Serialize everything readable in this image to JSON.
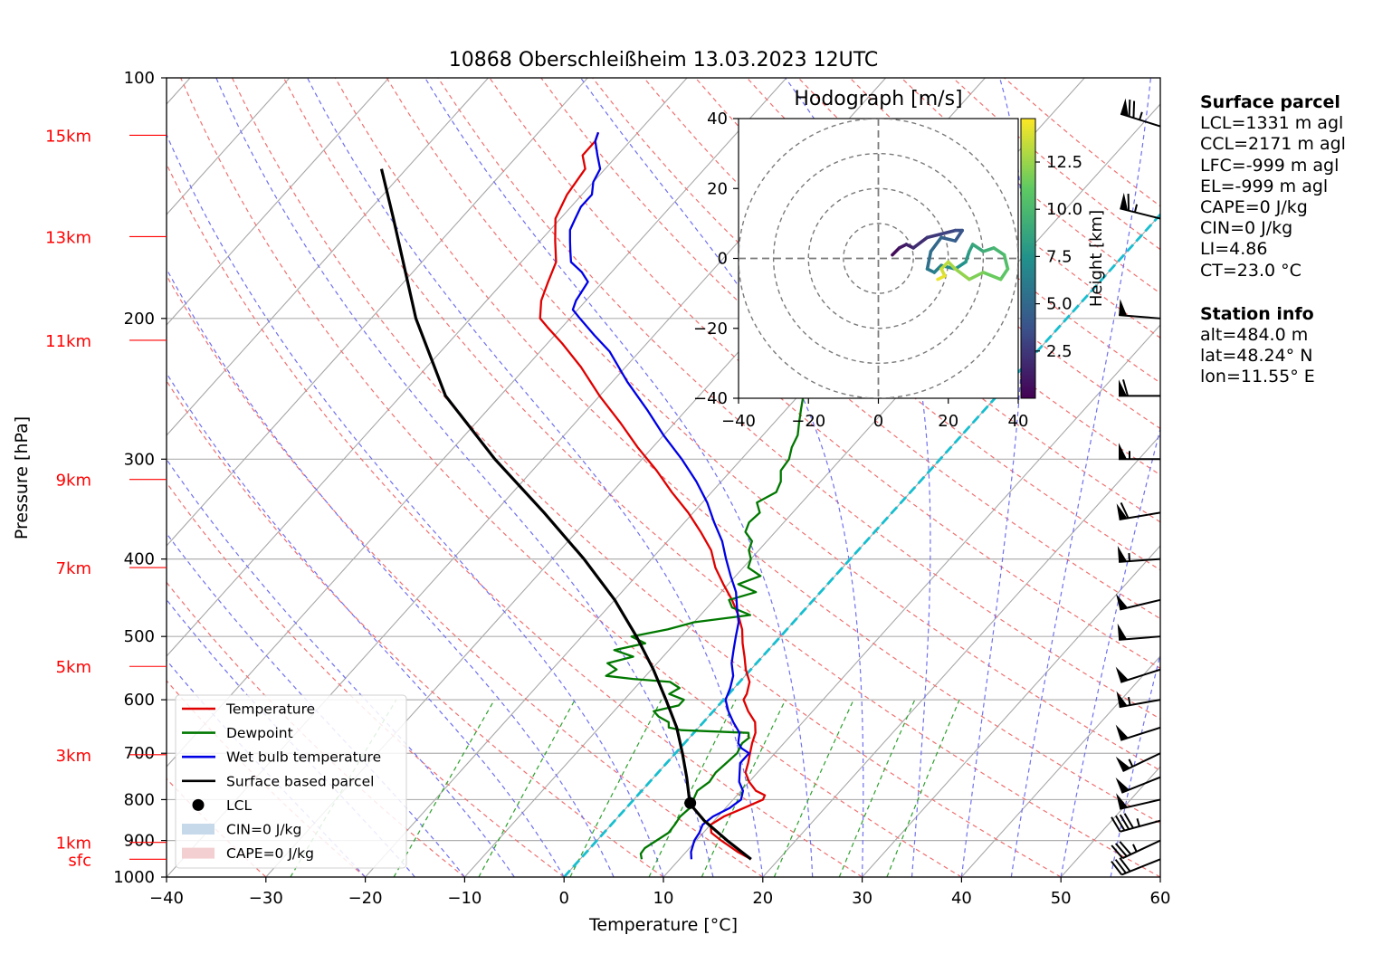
{
  "chart_data": {
    "type": "skew-t log-p sounding",
    "title": "10868 Oberschleißheim 13.03.2023 12UTC",
    "xlabel": "Temperature [°C]",
    "ylabel": "Pressure [hPa]",
    "xlim": [
      -40,
      60
    ],
    "ylim_hpa": [
      1000,
      100
    ],
    "y_scale": "log",
    "x_ticks": [
      "−40",
      "−30",
      "−20",
      "−10",
      "0",
      "10",
      "20",
      "30",
      "40",
      "50",
      "60"
    ],
    "y_ticks": [
      {
        "p": 100,
        "label": "100"
      },
      {
        "p": 200,
        "label": "200"
      },
      {
        "p": 300,
        "label": "300"
      },
      {
        "p": 400,
        "label": "400"
      },
      {
        "p": 500,
        "label": "500"
      },
      {
        "p": 600,
        "label": "600"
      },
      {
        "p": 700,
        "label": "700"
      },
      {
        "p": 800,
        "label": "800"
      },
      {
        "p": 900,
        "label": "900"
      },
      {
        "p": 1000,
        "label": "1000"
      }
    ],
    "height_labels": [
      {
        "label": "15km",
        "p": 118
      },
      {
        "label": "13km",
        "p": 158
      },
      {
        "label": "11km",
        "p": 213
      },
      {
        "label": "9km",
        "p": 318
      },
      {
        "label": "7km",
        "p": 410
      },
      {
        "label": "5km",
        "p": 545
      },
      {
        "label": "3km",
        "p": 703
      },
      {
        "label": "1km",
        "p": 905
      },
      {
        "label": "sfc",
        "p": 950
      }
    ],
    "legend_position": "lower-left",
    "legend": [
      {
        "label": "Temperature",
        "color": "#e00000",
        "kind": "line"
      },
      {
        "label": "Dewpoint",
        "color": "#007800",
        "kind": "line"
      },
      {
        "label": "Wet bulb temperature",
        "color": "#0000e6",
        "kind": "line"
      },
      {
        "label": "Surface based parcel",
        "color": "#000000",
        "kind": "line"
      },
      {
        "label": "LCL",
        "color": "#000000",
        "kind": "dot"
      },
      {
        "label": "CIN=0 J/kg",
        "color": "#c6d9ea",
        "kind": "patch"
      },
      {
        "label": "CAPE=0 J/kg",
        "color": "#f3cfd1",
        "kind": "patch"
      }
    ],
    "series": [
      {
        "name": "Temperature",
        "color": "#e00000",
        "points": [
          [
            950,
            17.2
          ],
          [
            930,
            15.2
          ],
          [
            900,
            12.5
          ],
          [
            880,
            10.8
          ],
          [
            860,
            10.0
          ],
          [
            840,
            10.6
          ],
          [
            820,
            11.8
          ],
          [
            800,
            13.0
          ],
          [
            790,
            12.8
          ],
          [
            780,
            11.5
          ],
          [
            760,
            10.0
          ],
          [
            740,
            8.8
          ],
          [
            720,
            8.2
          ],
          [
            700,
            7.5
          ],
          [
            680,
            6.8
          ],
          [
            660,
            6.2
          ],
          [
            640,
            5.2
          ],
          [
            620,
            3.5
          ],
          [
            600,
            2.0
          ],
          [
            590,
            1.8
          ],
          [
            570,
            1.0
          ],
          [
            550,
            -0.5
          ],
          [
            530,
            -1.8
          ],
          [
            510,
            -3.2
          ],
          [
            490,
            -4.5
          ],
          [
            470,
            -6.2
          ],
          [
            450,
            -8.2
          ],
          [
            430,
            -10.5
          ],
          [
            410,
            -12.8
          ],
          [
            390,
            -14.8
          ],
          [
            370,
            -17.5
          ],
          [
            350,
            -20.5
          ],
          [
            330,
            -24
          ],
          [
            310,
            -27.5
          ],
          [
            290,
            -31.5
          ],
          [
            270,
            -35.5
          ],
          [
            250,
            -40
          ],
          [
            230,
            -44.5
          ],
          [
            215,
            -48.5
          ],
          [
            205,
            -51.5
          ],
          [
            200,
            -53
          ],
          [
            190,
            -54.5
          ],
          [
            180,
            -55.5
          ],
          [
            170,
            -56.5
          ],
          [
            160,
            -58.5
          ],
          [
            150,
            -60.5
          ],
          [
            140,
            -61.5
          ],
          [
            130,
            -62
          ],
          [
            125,
            -63.5
          ],
          [
            120,
            -63.5
          ],
          [
            117,
            -64
          ]
        ]
      },
      {
        "name": "Dewpoint",
        "color": "#007800",
        "points": [
          [
            950,
            6.2
          ],
          [
            935,
            5.6
          ],
          [
            920,
            5.5
          ],
          [
            900,
            6.0
          ],
          [
            880,
            6.5
          ],
          [
            860,
            6.4
          ],
          [
            840,
            6.2
          ],
          [
            820,
            6.4
          ],
          [
            800,
            6.0
          ],
          [
            780,
            5.6
          ],
          [
            760,
            6.0
          ],
          [
            740,
            5.8
          ],
          [
            720,
            6.0
          ],
          [
            700,
            6.2
          ],
          [
            690,
            6.0
          ],
          [
            680,
            5.8
          ],
          [
            670,
            6.0
          ],
          [
            660,
            5.5
          ],
          [
            655,
            -1.5
          ],
          [
            650,
            -3
          ],
          [
            640,
            -3.5
          ],
          [
            630,
            -5
          ],
          [
            620,
            -6
          ],
          [
            610,
            -4
          ],
          [
            600,
            -4
          ],
          [
            590,
            -6
          ],
          [
            580,
            -5.5
          ],
          [
            570,
            -7
          ],
          [
            565,
            -11
          ],
          [
            560,
            -14
          ],
          [
            550,
            -13.5
          ],
          [
            540,
            -15
          ],
          [
            530,
            -13
          ],
          [
            520,
            -15.5
          ],
          [
            510,
            -13
          ],
          [
            500,
            -15
          ],
          [
            490,
            -12
          ],
          [
            480,
            -10
          ],
          [
            470,
            -5
          ],
          [
            460,
            -7.5
          ],
          [
            450,
            -8.5
          ],
          [
            440,
            -6.5
          ],
          [
            430,
            -9
          ],
          [
            420,
            -7.5
          ],
          [
            410,
            -9.5
          ],
          [
            400,
            -10
          ],
          [
            390,
            -11
          ],
          [
            380,
            -11.5
          ],
          [
            370,
            -13
          ],
          [
            360,
            -13.5
          ],
          [
            350,
            -13.3
          ],
          [
            340,
            -14.5
          ],
          [
            330,
            -13.5
          ],
          [
            320,
            -14
          ],
          [
            310,
            -15
          ],
          [
            300,
            -15.2
          ],
          [
            290,
            -16
          ],
          [
            280,
            -16.5
          ],
          [
            270,
            -17.5
          ],
          [
            260,
            -18.5
          ],
          [
            250,
            -19.5
          ],
          [
            240,
            -20
          ],
          [
            230,
            -20.5
          ],
          [
            220,
            -21
          ],
          [
            210,
            -22
          ],
          [
            200,
            -22.5
          ],
          [
            195,
            -22.5
          ],
          [
            190,
            -20.5
          ],
          [
            185,
            -19.5
          ],
          [
            180,
            -21
          ],
          [
            175,
            -23.5
          ],
          [
            170,
            -26
          ],
          [
            165,
            -28.5
          ],
          [
            160,
            -30
          ],
          [
            158,
            -31
          ],
          [
            155,
            -31
          ],
          [
            150,
            -31
          ],
          [
            145,
            -30.5
          ],
          [
            140,
            -30.5
          ],
          [
            135,
            -30.5
          ],
          [
            130,
            -30.5
          ],
          [
            125,
            -30.5
          ],
          [
            122,
            -30.5
          ],
          [
            120,
            -30
          ],
          [
            118,
            -30
          ],
          [
            116,
            -29.5
          ]
        ]
      },
      {
        "name": "Wet bulb temperature",
        "color": "#0000e6",
        "points": [
          [
            950,
            11.2
          ],
          [
            930,
            10.5
          ],
          [
            900,
            9.8
          ],
          [
            880,
            9.6
          ],
          [
            860,
            9.2
          ],
          [
            840,
            9.5
          ],
          [
            820,
            10.4
          ],
          [
            800,
            10.8
          ],
          [
            780,
            10.2
          ],
          [
            760,
            9.0
          ],
          [
            740,
            8.2
          ],
          [
            720,
            7.4
          ],
          [
            700,
            7.4
          ],
          [
            690,
            6.2
          ],
          [
            680,
            5.4
          ],
          [
            660,
            4.6
          ],
          [
            640,
            3.0
          ],
          [
            620,
            1.5
          ],
          [
            600,
            0.2
          ],
          [
            580,
            -0.4
          ],
          [
            560,
            -1.2
          ],
          [
            540,
            -2.5
          ],
          [
            520,
            -3.5
          ],
          [
            500,
            -4.5
          ],
          [
            480,
            -5.5
          ],
          [
            460,
            -7
          ],
          [
            440,
            -8.5
          ],
          [
            420,
            -10.5
          ],
          [
            400,
            -12.5
          ],
          [
            380,
            -14.5
          ],
          [
            360,
            -17
          ],
          [
            340,
            -19.5
          ],
          [
            320,
            -22.5
          ],
          [
            300,
            -26
          ],
          [
            280,
            -30
          ],
          [
            260,
            -34
          ],
          [
            240,
            -38.5
          ],
          [
            220,
            -43
          ],
          [
            210,
            -46
          ],
          [
            200,
            -49
          ],
          [
            195,
            -50.5
          ],
          [
            190,
            -51
          ],
          [
            180,
            -51.5
          ],
          [
            175,
            -53
          ],
          [
            170,
            -55
          ],
          [
            165,
            -56
          ],
          [
            160,
            -57
          ],
          [
            155,
            -58
          ],
          [
            150,
            -58.5
          ],
          [
            145,
            -59
          ],
          [
            140,
            -59
          ],
          [
            135,
            -60
          ],
          [
            130,
            -60.5
          ],
          [
            125,
            -62
          ],
          [
            120,
            -63.5
          ],
          [
            117,
            -64
          ]
        ]
      },
      {
        "name": "Surface based parcel",
        "color": "#000000",
        "points": [
          [
            950,
            17.2
          ],
          [
            900,
            13.1
          ],
          [
            850,
            9.0
          ],
          [
            820,
            6.8
          ],
          [
            800,
            5.6
          ],
          [
            750,
            3.3
          ],
          [
            700,
            0.7
          ],
          [
            650,
            -2.2
          ],
          [
            600,
            -5.8
          ],
          [
            550,
            -9.8
          ],
          [
            500,
            -14.5
          ],
          [
            450,
            -20
          ],
          [
            400,
            -26.8
          ],
          [
            350,
            -35
          ],
          [
            300,
            -44.8
          ],
          [
            250,
            -55.5
          ],
          [
            200,
            -65.5
          ],
          [
            150,
            -76.8
          ],
          [
            130,
            -82.5
          ]
        ]
      }
    ],
    "lcl": {
      "p": 808,
      "t": 6.0
    },
    "hodograph": {
      "title": "Hodograph [m/s]",
      "xlim": [
        -40,
        40
      ],
      "ylim": [
        -40,
        40
      ],
      "ticks": [
        "−40",
        "−20",
        "0",
        "20",
        "40"
      ],
      "rings": [
        10,
        20,
        30,
        40
      ],
      "colorbar_label": "Height [km]",
      "colorbar_ticks": [
        "2.5",
        "5.0",
        "7.5",
        "10.0",
        "12.5"
      ],
      "trace": [
        [
          4,
          1,
          0.5
        ],
        [
          6,
          3,
          1
        ],
        [
          8,
          4,
          1.5
        ],
        [
          10,
          3,
          2
        ],
        [
          14,
          6,
          2.5
        ],
        [
          18,
          7,
          3
        ],
        [
          22,
          8,
          3.5
        ],
        [
          24,
          8,
          4
        ],
        [
          22,
          5,
          4.5
        ],
        [
          18,
          6,
          5
        ],
        [
          15,
          2,
          5.5
        ],
        [
          14,
          -3,
          6
        ],
        [
          16,
          -4,
          6.5
        ],
        [
          18,
          -2,
          7
        ],
        [
          22,
          -3,
          7.5
        ],
        [
          25,
          -1,
          8
        ],
        [
          26,
          2,
          8.5
        ],
        [
          27,
          4,
          9
        ],
        [
          30,
          2,
          9.5
        ],
        [
          33,
          3,
          10
        ],
        [
          36,
          1,
          10.5
        ],
        [
          37,
          -3,
          11
        ],
        [
          35,
          -6,
          11.5
        ],
        [
          30,
          -4,
          12
        ],
        [
          26,
          -6,
          12.5
        ],
        [
          22,
          -3,
          13
        ],
        [
          20,
          -1,
          13.5
        ],
        [
          18,
          -3,
          14
        ],
        [
          19,
          -5,
          14.5
        ],
        [
          17,
          -6,
          15
        ]
      ]
    },
    "wind_barbs": [
      {
        "p": 115,
        "u": -38,
        "v": 12
      },
      {
        "p": 150,
        "u": -32,
        "v": 8
      },
      {
        "p": 200,
        "u": -25,
        "v": 2
      },
      {
        "p": 250,
        "u": -32,
        "v": 0
      },
      {
        "p": 300,
        "u": -28,
        "v": 0
      },
      {
        "p": 350,
        "u": -30,
        "v": -5
      },
      {
        "p": 400,
        "u": -28,
        "v": -2
      },
      {
        "p": 450,
        "u": -25,
        "v": -6
      },
      {
        "p": 500,
        "u": -25,
        "v": -2
      },
      {
        "p": 550,
        "u": -25,
        "v": -8
      },
      {
        "p": 600,
        "u": -28,
        "v": -5
      },
      {
        "p": 650,
        "u": -25,
        "v": -8
      },
      {
        "p": 700,
        "u": -25,
        "v": -12
      },
      {
        "p": 750,
        "u": -25,
        "v": -10
      },
      {
        "p": 800,
        "u": -26,
        "v": -6
      },
      {
        "p": 850,
        "u": -22,
        "v": -6
      },
      {
        "p": 900,
        "u": -17,
        "v": -8
      },
      {
        "p": 950,
        "u": -15,
        "v": -6
      }
    ]
  },
  "info": {
    "surface_title": "Surface parcel",
    "surface_lines": [
      "LCL=1331 m agl",
      "CCL=2171 m agl",
      "LFC=-999 m agl",
      "EL=-999 m agl",
      "CAPE=0 J/kg",
      "CIN=0 J/kg",
      "LI=4.86",
      "CT=23.0 °C"
    ],
    "station_title": "Station info",
    "station_lines": [
      "alt=484.0 m",
      "lat=48.24° N",
      "lon=11.55° E"
    ]
  }
}
